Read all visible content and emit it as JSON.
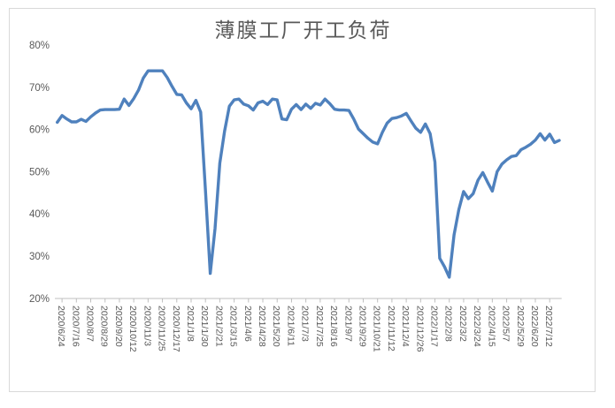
{
  "chart_data": {
    "type": "line",
    "title": "薄膜工厂开工负荷",
    "xlabel": "",
    "ylabel": "",
    "unit": "%",
    "grid": false,
    "legend": "none",
    "line_color": "#4F81BD",
    "axis_color": "#BFBFBF",
    "label_color": "#595959",
    "frame_border_color": "#D9D9D9",
    "ylim": [
      20,
      80
    ],
    "y_tick_labels": [
      "80%",
      "70%",
      "60%",
      "50%",
      "40%",
      "30%",
      "20%"
    ],
    "y_tick_values": [
      80,
      70,
      60,
      50,
      40,
      30,
      20
    ],
    "categories": [
      "2020/6/24",
      "2020/7/16",
      "2020/8/7",
      "2020/8/29",
      "2020/9/20",
      "2020/10/12",
      "2020/11/3",
      "2020/11/25",
      "2020/12/17",
      "2021/1/8",
      "2021/1/30",
      "2021/2/21",
      "2021/3/15",
      "2021/4/6",
      "2021/4/28",
      "2021/5/20",
      "2021/6/11",
      "2021/7/3",
      "2021/7/25",
      "2021/8/16",
      "2021/9/7",
      "2021/9/29",
      "2021/10/21",
      "2021/11/12",
      "2021/12/4",
      "2021/12/26",
      "2022/1/17",
      "2022/2/8",
      "2022/3/2",
      "2022/3/24",
      "2022/4/15",
      "2022/5/7",
      "2022/5/29",
      "2022/6/20",
      "2022/7/12"
    ],
    "label_note": "x labels shown every 3rd data point, rotated 90 degrees",
    "points_per_label": 3,
    "first_label_point_index": 1,
    "n_points": 106,
    "values": [
      61.7,
      63.3,
      62.5,
      61.8,
      61.8,
      62.4,
      61.9,
      63.0,
      63.9,
      64.6,
      64.7,
      64.7,
      64.7,
      64.8,
      67.2,
      65.7,
      67.3,
      69.3,
      72.2,
      73.9,
      73.9,
      73.9,
      73.9,
      72.3,
      70.2,
      68.3,
      68.2,
      66.3,
      64.9,
      66.9,
      64.1,
      45.5,
      25.9,
      36.5,
      52.0,
      59.6,
      65.5,
      67.0,
      67.2,
      66.0,
      65.6,
      64.6,
      66.3,
      66.7,
      65.9,
      67.2,
      67.0,
      62.5,
      62.3,
      64.8,
      65.9,
      64.7,
      66.0,
      65.0,
      66.2,
      65.8,
      67.2,
      66.1,
      64.8,
      64.6,
      64.6,
      64.5,
      62.5,
      60.1,
      59.0,
      57.9,
      57.0,
      56.6,
      59.3,
      61.5,
      62.6,
      62.8,
      63.2,
      63.8,
      62.0,
      60.3,
      59.3,
      61.3,
      59.0,
      52.3,
      29.5,
      27.5,
      25.0,
      35.0,
      41.0,
      45.3,
      43.6,
      44.8,
      48.0,
      49.8,
      47.5,
      45.4,
      50.0,
      51.8,
      52.8,
      53.6,
      53.8,
      55.2,
      55.8,
      56.5,
      57.5,
      59.0,
      57.5,
      58.9,
      56.9,
      57.4
    ]
  }
}
